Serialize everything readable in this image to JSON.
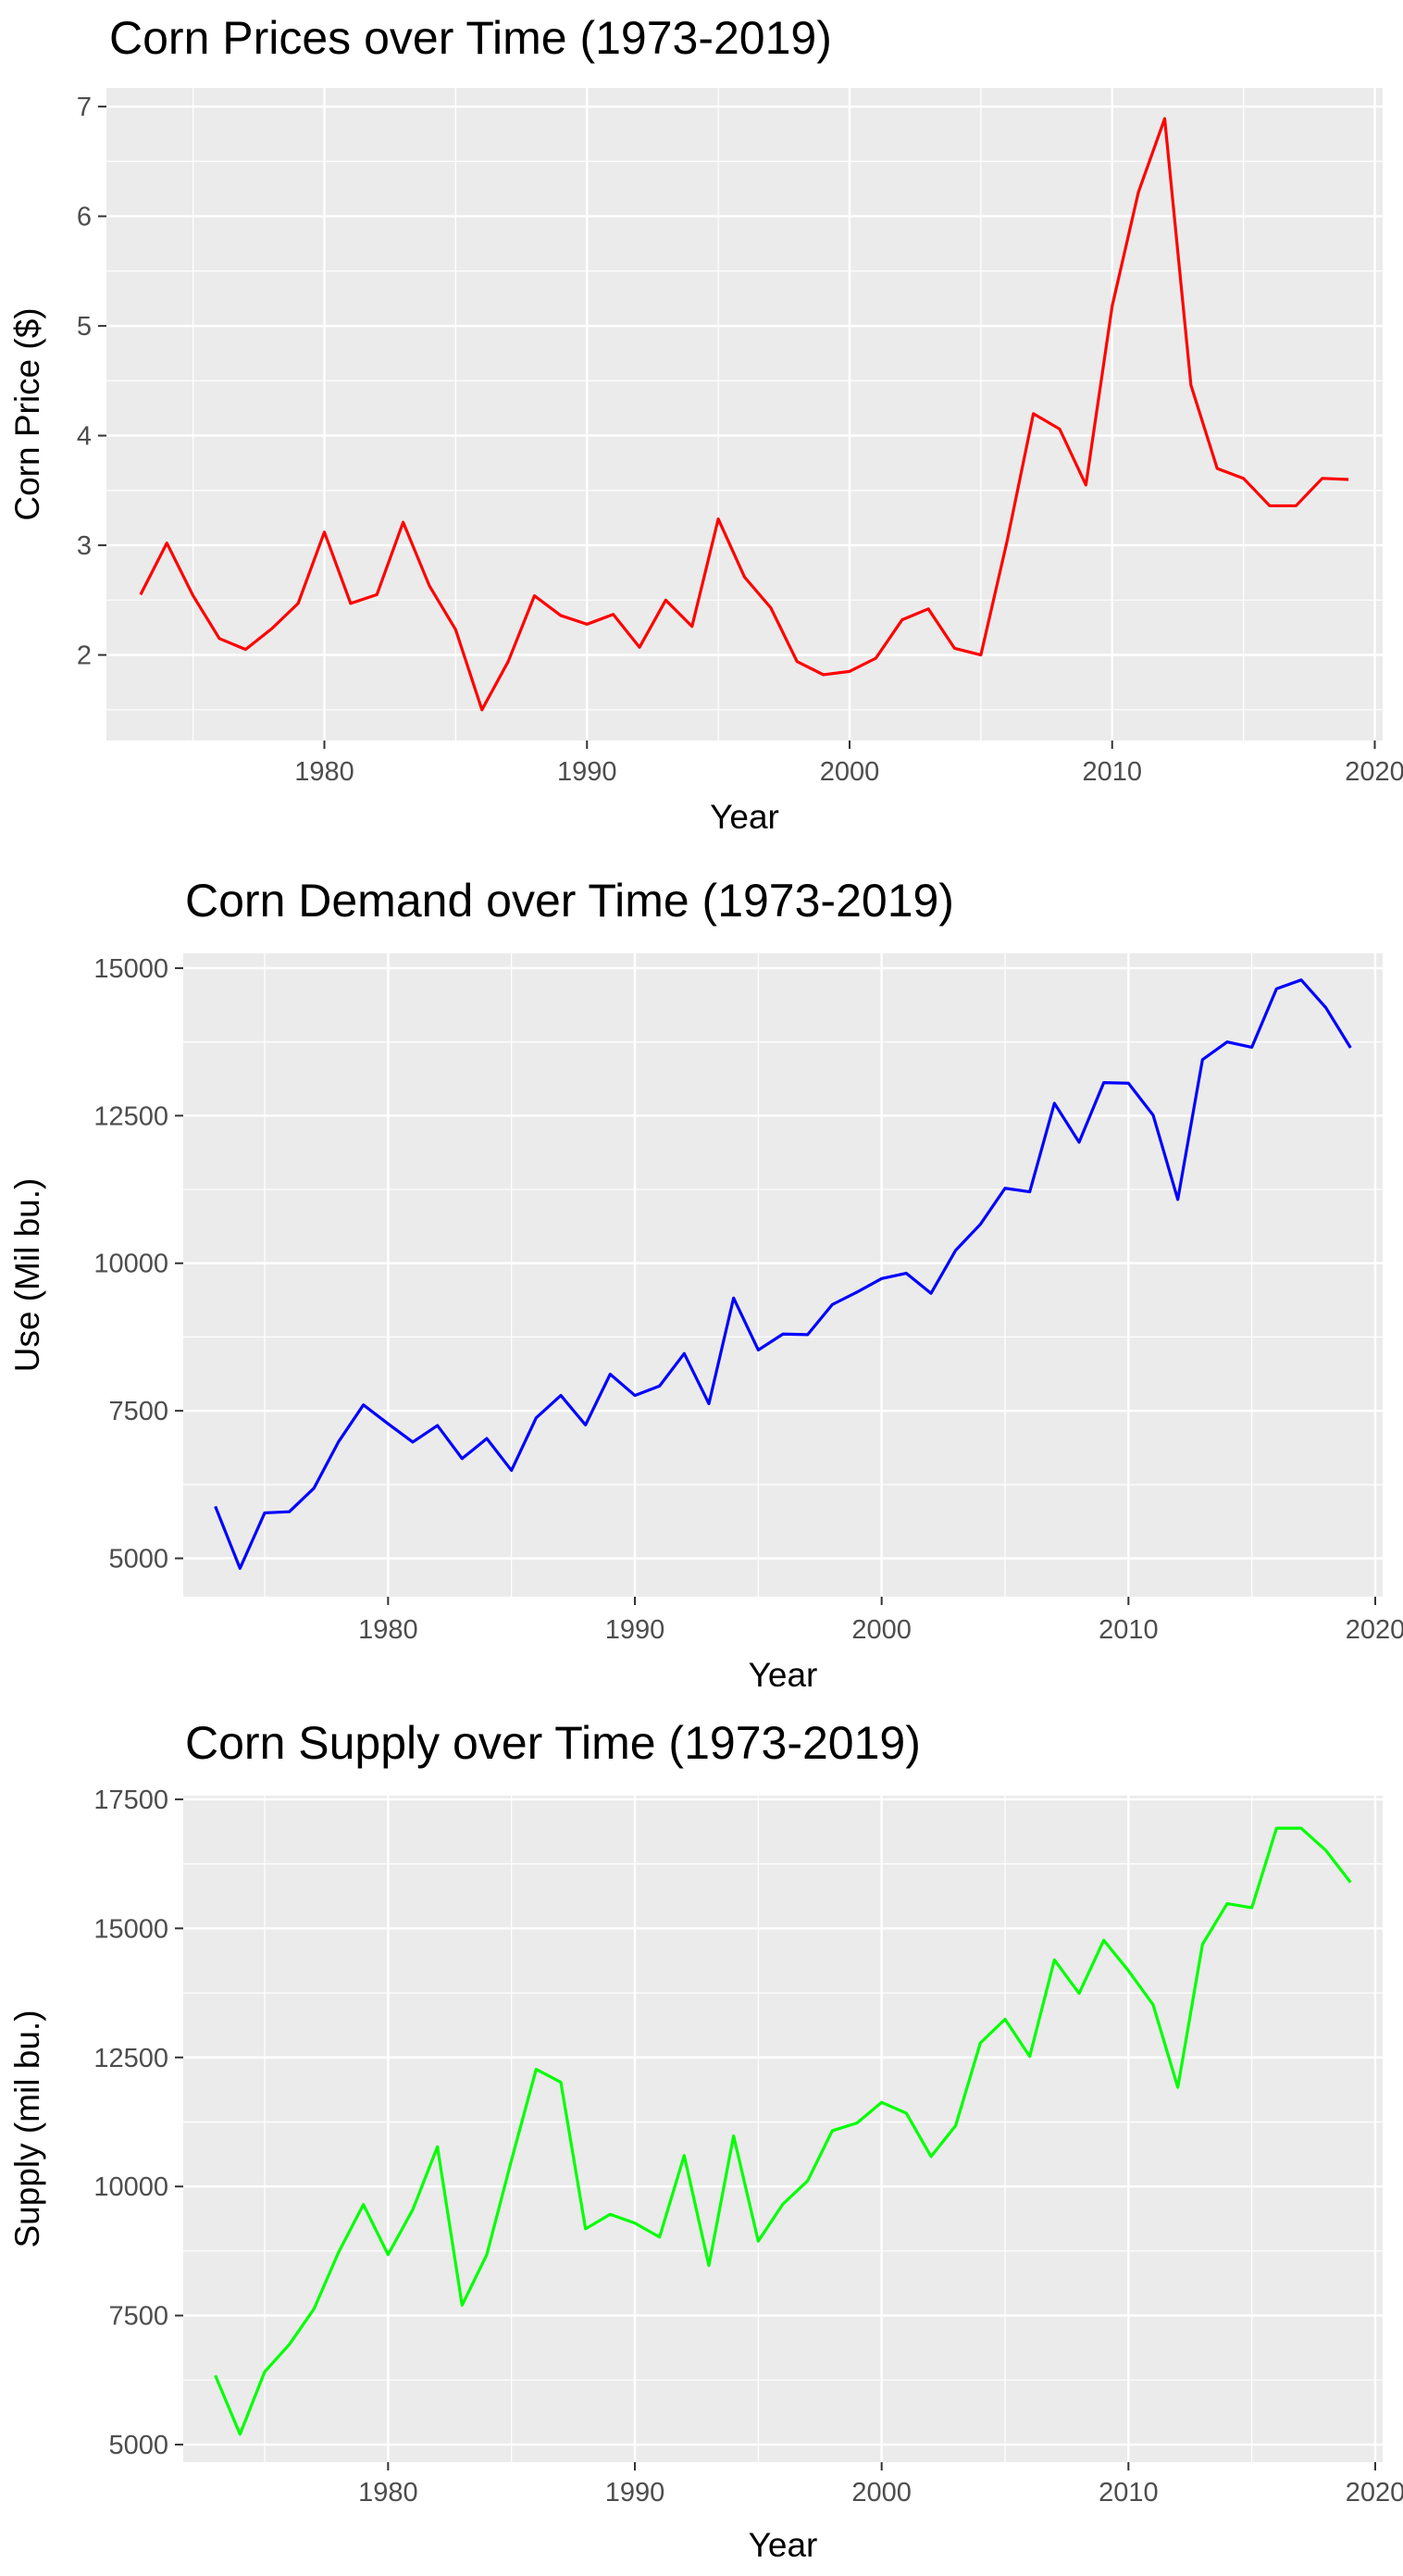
{
  "chart_data": [
    {
      "type": "line",
      "title": "Corn Prices over Time (1973-2019)",
      "xlabel": "Year",
      "ylabel": "Corn Price ($)",
      "xlim": [
        1971.7,
        2020.3
      ],
      "ylim": [
        1.22,
        7.17
      ],
      "x_ticks": [
        1980,
        1990,
        2000,
        2010,
        2020
      ],
      "y_ticks": [
        2,
        3,
        4,
        5,
        6,
        7
      ],
      "grid": true,
      "color": "#ff0000",
      "x": [
        1973,
        1974,
        1975,
        1976,
        1977,
        1978,
        1979,
        1980,
        1981,
        1982,
        1983,
        1984,
        1985,
        1986,
        1987,
        1988,
        1989,
        1990,
        1991,
        1992,
        1993,
        1994,
        1995,
        1996,
        1997,
        1998,
        1999,
        2000,
        2001,
        2002,
        2003,
        2004,
        2005,
        2006,
        2007,
        2008,
        2009,
        2010,
        2011,
        2012,
        2013,
        2014,
        2015,
        2016,
        2017,
        2018,
        2019
      ],
      "values": [
        2.55,
        3.02,
        2.54,
        2.15,
        2.05,
        2.24,
        2.47,
        3.12,
        2.47,
        2.55,
        3.21,
        2.63,
        2.23,
        1.5,
        1.94,
        2.54,
        2.36,
        2.28,
        2.37,
        2.07,
        2.5,
        2.26,
        3.24,
        2.71,
        2.43,
        1.94,
        1.82,
        1.85,
        1.97,
        2.32,
        2.42,
        2.06,
        2.0,
        3.04,
        4.2,
        4.06,
        3.55,
        5.18,
        6.22,
        6.89,
        4.46,
        3.7,
        3.61,
        3.36,
        3.36,
        3.61,
        3.6
      ]
    },
    {
      "type": "line",
      "title": "Corn Demand over Time (1973-2019)",
      "xlabel": "Year",
      "ylabel": "Use (Mil bu.)",
      "xlim": [
        1971.7,
        2020.3
      ],
      "ylim": [
        4350,
        15250
      ],
      "x_ticks": [
        1980,
        1990,
        2000,
        2010,
        2020
      ],
      "y_ticks": [
        5000,
        7500,
        10000,
        12500,
        15000
      ],
      "grid": true,
      "color": "#0000ff",
      "x": [
        1973,
        1974,
        1975,
        1976,
        1977,
        1978,
        1979,
        1980,
        1981,
        1982,
        1983,
        1984,
        1985,
        1986,
        1987,
        1988,
        1989,
        1990,
        1991,
        1992,
        1993,
        1994,
        1995,
        1996,
        1997,
        1998,
        1999,
        2000,
        2001,
        2002,
        2003,
        2004,
        2005,
        2006,
        2007,
        2008,
        2009,
        2010,
        2011,
        2012,
        2013,
        2014,
        2015,
        2016,
        2017,
        2018,
        2019
      ],
      "values": [
        5880,
        4830,
        5770,
        5790,
        6190,
        6980,
        7600,
        7280,
        6970,
        7250,
        6690,
        7030,
        6490,
        7380,
        7760,
        7260,
        8120,
        7760,
        7920,
        8470,
        7620,
        9410,
        8530,
        8800,
        8790,
        9300,
        9510,
        9740,
        9830,
        9490,
        10220,
        10660,
        11270,
        11210,
        12710,
        12050,
        13060,
        13050,
        12510,
        11080,
        13450,
        13750,
        13660,
        14650,
        14800,
        14330,
        13650
      ]
    },
    {
      "type": "line",
      "title": "Corn Supply over Time (1973-2019)",
      "xlabel": "Year",
      "ylabel": "Supply (mil bu.)",
      "xlim": [
        1971.7,
        2020.3
      ],
      "ylim": [
        4660,
        17570
      ],
      "x_ticks": [
        1980,
        1990,
        2000,
        2010,
        2020
      ],
      "y_ticks": [
        5000,
        7500,
        10000,
        12500,
        15000,
        17500
      ],
      "grid": true,
      "color": "#00ff00",
      "x": [
        1973,
        1974,
        1975,
        1976,
        1977,
        1978,
        1979,
        1980,
        1981,
        1982,
        1983,
        1984,
        1985,
        1986,
        1987,
        1988,
        1989,
        1990,
        1991,
        1992,
        1993,
        1994,
        1995,
        1996,
        1997,
        1998,
        1999,
        2000,
        2001,
        2002,
        2003,
        2004,
        2005,
        2006,
        2007,
        2008,
        2009,
        2010,
        2011,
        2012,
        2013,
        2014,
        2015,
        2016,
        2017,
        2018,
        2019
      ],
      "values": [
        6340,
        5200,
        6410,
        6940,
        7630,
        8730,
        9650,
        8680,
        9550,
        10770,
        7700,
        8680,
        10510,
        12270,
        12020,
        9180,
        9460,
        9290,
        9020,
        10600,
        8470,
        10980,
        8940,
        9660,
        10110,
        11080,
        11230,
        11630,
        11420,
        10580,
        11180,
        12780,
        13240,
        12520,
        14390,
        13740,
        14770,
        14180,
        13520,
        11920,
        14690,
        15480,
        15400,
        16940,
        16940,
        16510,
        15890
      ]
    }
  ]
}
